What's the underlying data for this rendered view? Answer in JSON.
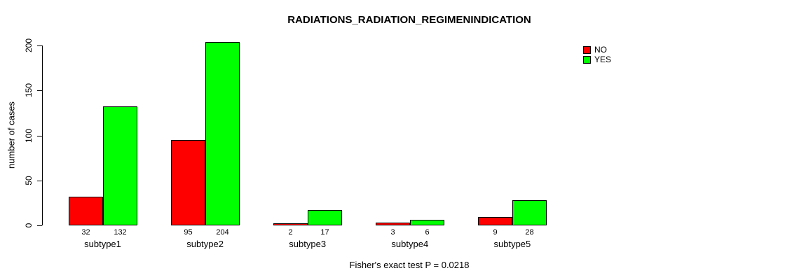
{
  "chart_data": {
    "type": "bar",
    "title": "RADIATIONS_RADIATION_REGIMENINDICATION",
    "ylabel": "number of cases",
    "xlabel": "",
    "categories": [
      "subtype1",
      "subtype2",
      "subtype3",
      "subtype4",
      "subtype5"
    ],
    "series": [
      {
        "name": "NO",
        "color": "#FF0000",
        "values": [
          32,
          95,
          2,
          3,
          9
        ]
      },
      {
        "name": "YES",
        "color": "#00FF00",
        "values": [
          132,
          204,
          17,
          6,
          28
        ]
      }
    ],
    "yticks": [
      0,
      50,
      100,
      150,
      200
    ],
    "ylim": [
      0,
      200
    ],
    "grid": false,
    "value_labels_shown": true,
    "legend_position": "top-right-inside",
    "annotation": "Fisher's exact test P = 0.0218"
  }
}
